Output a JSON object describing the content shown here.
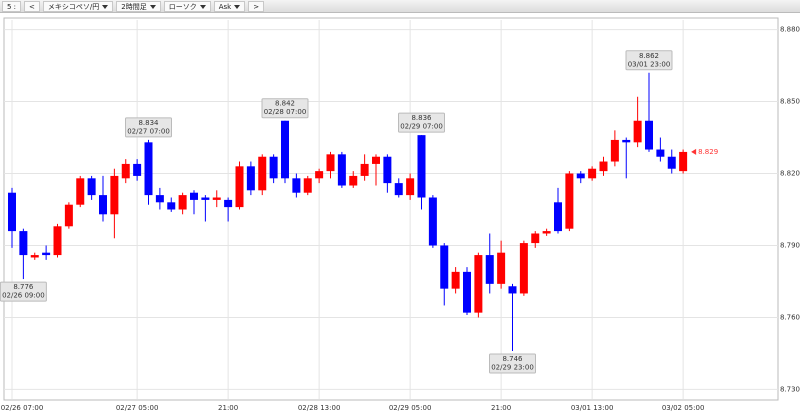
{
  "toolbar": {
    "items": [
      "5 :",
      "<",
      "メキシコペソ/円",
      "2時間足",
      "ローソク",
      "Ask",
      ">"
    ]
  },
  "chart_data": {
    "type": "candlestick",
    "categories": [
      "02/26 07:00",
      null,
      null,
      null,
      null,
      null,
      null,
      null,
      null,
      null,
      null,
      "02/27 05:00",
      null,
      null,
      null,
      null,
      null,
      null,
      null,
      "21:00",
      null,
      null,
      null,
      null,
      null,
      null,
      null,
      "02/28 13:00",
      null,
      null,
      null,
      null,
      null,
      null,
      null,
      "02/29 05:00",
      null,
      null,
      null,
      null,
      null,
      null,
      null,
      "21:00",
      null,
      null,
      null,
      null,
      null,
      null,
      null,
      "03/01 13:00",
      null,
      null,
      null,
      null,
      null,
      null,
      null,
      "03/02 05:00"
    ],
    "open": [
      8.812,
      8.796,
      8.785,
      8.787,
      8.786,
      8.798,
      8.807,
      8.818,
      8.811,
      8.803,
      8.818,
      8.824,
      8.833,
      8.811,
      8.808,
      8.805,
      8.812,
      8.81,
      8.809,
      8.809,
      8.806,
      8.823,
      8.813,
      8.827,
      8.842,
      8.818,
      8.812,
      8.818,
      8.821,
      8.828,
      8.815,
      8.819,
      8.824,
      8.827,
      8.816,
      8.811,
      8.836,
      8.81,
      8.79,
      8.772,
      8.779,
      8.762,
      8.786,
      8.774,
      8.773,
      8.77,
      8.791,
      8.795,
      8.808,
      8.797,
      8.82,
      8.818,
      8.821,
      8.825,
      8.834,
      8.833,
      8.842,
      8.83,
      8.827,
      8.821
    ],
    "high": [
      8.814,
      8.797,
      8.787,
      8.79,
      8.799,
      8.808,
      8.819,
      8.819,
      8.819,
      8.822,
      8.826,
      8.826,
      8.834,
      8.814,
      8.81,
      8.812,
      8.813,
      8.811,
      8.813,
      8.81,
      8.825,
      8.825,
      8.828,
      8.828,
      8.842,
      8.82,
      8.819,
      8.822,
      8.829,
      8.829,
      8.821,
      8.828,
      8.828,
      8.828,
      8.818,
      8.82,
      8.836,
      8.811,
      8.791,
      8.781,
      8.781,
      8.787,
      8.795,
      8.792,
      8.774,
      8.792,
      8.796,
      8.797,
      8.814,
      8.821,
      8.821,
      8.823,
      8.827,
      8.838,
      8.835,
      8.852,
      8.862,
      8.835,
      8.83,
      8.83
    ],
    "low": [
      8.789,
      8.776,
      8.784,
      8.784,
      8.785,
      8.797,
      8.806,
      8.809,
      8.8,
      8.793,
      8.816,
      8.817,
      8.807,
      8.805,
      8.804,
      8.803,
      8.803,
      8.8,
      8.806,
      8.8,
      8.805,
      8.811,
      8.811,
      8.816,
      8.816,
      8.81,
      8.811,
      8.816,
      8.818,
      8.814,
      8.814,
      8.817,
      8.815,
      8.812,
      8.81,
      8.809,
      8.805,
      8.789,
      8.765,
      8.77,
      8.761,
      8.76,
      8.77,
      8.772,
      8.746,
      8.769,
      8.789,
      8.794,
      8.795,
      8.796,
      8.816,
      8.817,
      8.819,
      8.823,
      8.818,
      8.831,
      8.829,
      8.825,
      8.82,
      8.82
    ],
    "close": [
      8.796,
      8.786,
      8.786,
      8.786,
      8.798,
      8.807,
      8.818,
      8.811,
      8.803,
      8.819,
      8.824,
      8.819,
      8.811,
      8.808,
      8.805,
      8.811,
      8.809,
      8.809,
      8.81,
      8.806,
      8.823,
      8.813,
      8.827,
      8.818,
      8.818,
      8.812,
      8.818,
      8.821,
      8.828,
      8.815,
      8.819,
      8.824,
      8.827,
      8.816,
      8.811,
      8.818,
      8.81,
      8.79,
      8.772,
      8.779,
      8.762,
      8.786,
      8.774,
      8.787,
      8.77,
      8.791,
      8.795,
      8.796,
      8.796,
      8.82,
      8.818,
      8.822,
      8.825,
      8.834,
      8.833,
      8.842,
      8.83,
      8.827,
      8.822,
      8.829
    ],
    "up_color": "#ff0000",
    "down_color": "#0000ff",
    "ylim": [
      8.726,
      8.884
    ],
    "yticks": [
      {
        "value": 8.73,
        "label": "8.730"
      },
      {
        "value": 8.76,
        "label": "8.760"
      },
      {
        "value": 8.79,
        "label": "8.790"
      },
      {
        "value": 8.82,
        "label": "8.820"
      },
      {
        "value": 8.85,
        "label": "8.850"
      },
      {
        "value": 8.88,
        "label": "8.880"
      }
    ],
    "grid": true,
    "annotations": [
      {
        "price": 8.776,
        "time": "02/26 09:00"
      },
      {
        "price": 8.834,
        "time": "02/27 07:00"
      },
      {
        "price": 8.842,
        "time": "02/28 07:00"
      },
      {
        "price": 8.836,
        "time": "02/29 07:00"
      },
      {
        "price": 8.746,
        "time": "02/29 23:00"
      },
      {
        "price": 8.862,
        "time": "03/01 23:00"
      }
    ],
    "last_price": 8.829,
    "last_price_color": "#ff3333"
  }
}
